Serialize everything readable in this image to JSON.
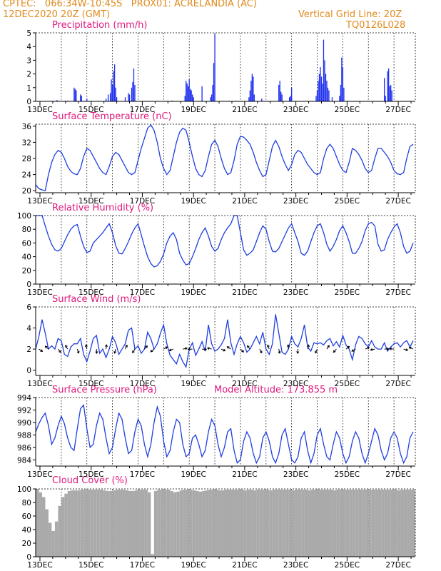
{
  "header": {
    "line1_left": "CPTEC:   066:34W-10:45S   PROX01: ACRELANDIA (AC)",
    "line2_left": "12DEC2020 20Z (GMT)",
    "line2_right": "Vertical Grid Line: 20Z",
    "line3_right": "TQ0126L028"
  },
  "x_ticks": [
    "13DEC",
    "15DEC",
    "17DEC",
    "19DEC",
    "21DEC",
    "23DEC",
    "25DEC",
    "27DEC"
  ],
  "colors": {
    "header": "#e08a1e",
    "title": "#e0197d",
    "line": "#1f3fe0",
    "bar": "#2233ee",
    "cloud": "#aaaaaa"
  },
  "chart_data": [
    {
      "type": "bar",
      "title": "Precipitation (mm/h)",
      "ylim": [
        0,
        5
      ],
      "yticks": [
        0,
        1,
        2,
        3,
        4,
        5
      ],
      "x_range_hours": [
        0,
        356
      ],
      "hour_zero": "12DEC2020 20Z",
      "bars": [
        [
          20,
          0.1
        ],
        [
          30,
          0.05
        ],
        [
          36,
          1.0
        ],
        [
          37,
          0.9
        ],
        [
          38,
          0.8
        ],
        [
          42,
          0.5
        ],
        [
          43,
          0.4
        ],
        [
          48,
          0.2
        ],
        [
          66,
          0.2
        ],
        [
          68,
          0.5
        ],
        [
          70,
          0.6
        ],
        [
          71,
          1.6
        ],
        [
          72,
          1.2
        ],
        [
          73,
          2.2
        ],
        [
          74,
          2.7
        ],
        [
          75,
          1.0
        ],
        [
          76,
          0.3
        ],
        [
          84,
          0.3
        ],
        [
          87,
          0.6
        ],
        [
          88,
          0.5
        ],
        [
          90,
          1.0
        ],
        [
          91,
          1.4
        ],
        [
          92,
          2.4
        ],
        [
          93,
          1.2
        ],
        [
          128,
          0.05
        ],
        [
          140,
          0.4
        ],
        [
          141,
          1.5
        ],
        [
          142,
          1.3
        ],
        [
          143,
          1.1
        ],
        [
          144,
          1.6
        ],
        [
          145,
          0.9
        ],
        [
          146,
          0.8
        ],
        [
          147,
          0.5
        ],
        [
          148,
          0.3
        ],
        [
          156,
          1.1
        ],
        [
          164,
          0.3
        ],
        [
          165,
          0.5
        ],
        [
          166,
          1.2
        ],
        [
          167,
          2.8
        ],
        [
          168,
          4.9
        ],
        [
          200,
          0.3
        ],
        [
          201,
          0.8
        ],
        [
          202,
          1.5
        ],
        [
          203,
          2.0
        ],
        [
          204,
          1.8
        ],
        [
          205,
          0.5
        ],
        [
          212,
          0.2
        ],
        [
          228,
          1.2
        ],
        [
          229,
          1.5
        ],
        [
          230,
          0.7
        ],
        [
          231,
          0.5
        ],
        [
          238,
          0.3
        ],
        [
          239,
          0.4
        ],
        [
          240,
          1.0
        ],
        [
          263,
          0.4
        ],
        [
          264,
          0.8
        ],
        [
          265,
          1.5
        ],
        [
          266,
          2.0
        ],
        [
          267,
          2.5
        ],
        [
          268,
          1.8
        ],
        [
          269,
          1.3
        ],
        [
          270,
          4.5
        ],
        [
          271,
          3.0
        ],
        [
          272,
          2.0
        ],
        [
          273,
          1.5
        ],
        [
          274,
          1.0
        ],
        [
          275,
          0.8
        ],
        [
          278,
          0.3
        ],
        [
          285,
          0.4
        ],
        [
          286,
          1.2
        ],
        [
          287,
          3.2
        ],
        [
          288,
          2.5
        ],
        [
          289,
          1.0
        ],
        [
          327,
          1.7
        ],
        [
          328,
          0.4
        ],
        [
          330,
          2.2
        ],
        [
          331,
          2.4
        ],
        [
          332,
          1.1
        ],
        [
          333,
          1.2
        ],
        [
          334,
          0.8
        ]
      ]
    },
    {
      "type": "line",
      "title": "Surface Temperature (nC)",
      "ylim": [
        19.5,
        36.5
      ],
      "yticks": [
        20,
        24,
        28,
        32,
        36
      ],
      "x_range_hours": [
        0,
        356
      ],
      "x_step_hours": 3,
      "values": [
        21.5,
        20.5,
        20.2,
        20.0,
        24.0,
        27.0,
        29.0,
        30.0,
        29.5,
        28.0,
        26.0,
        24.8,
        24.2,
        24.0,
        25.5,
        28.5,
        30.5,
        30.0,
        28.5,
        27.0,
        25.5,
        24.5,
        24.0,
        26.0,
        28.5,
        29.5,
        29.0,
        27.5,
        26.0,
        24.5,
        24.0,
        24.5,
        27.5,
        30.5,
        33.0,
        35.5,
        36.3,
        35.0,
        32.0,
        28.0,
        25.5,
        24.0,
        25.0,
        28.5,
        32.0,
        34.5,
        35.5,
        35.0,
        32.0,
        28.5,
        25.5,
        24.0,
        23.5,
        25.0,
        28.5,
        31.5,
        32.5,
        31.0,
        28.0,
        25.5,
        24.0,
        24.5,
        27.5,
        31.5,
        33.5,
        33.3,
        32.5,
        31.5,
        29.5,
        27.0,
        25.0,
        23.5,
        24.0,
        27.5,
        31.0,
        32.5,
        31.0,
        28.5,
        26.5,
        25.0,
        26.5,
        29.0,
        30.0,
        29.5,
        28.0,
        26.5,
        25.5,
        24.5,
        24.0,
        24.5,
        28.0,
        30.5,
        31.5,
        30.5,
        28.5,
        26.5,
        25.0,
        24.5,
        27.0,
        30.5,
        30.0,
        29.0,
        27.5,
        25.5,
        24.5,
        25.0,
        28.0,
        30.5,
        30.5,
        29.5,
        28.5,
        27.0,
        25.0,
        24.2,
        24.0,
        24.5,
        28.0,
        31.0,
        31.5,
        30.0,
        28.0,
        26.0,
        24.5,
        24.0,
        27.0,
        30.0,
        30.5,
        29.0,
        27.5,
        26.0,
        24.5,
        25.0,
        27.5,
        28.5,
        28.0
      ],
      "xlabel": "",
      "ylabel": ""
    },
    {
      "type": "line",
      "title": "Relative Humidity (%)",
      "ylim": [
        0,
        100
      ],
      "yticks": [
        0,
        20,
        40,
        60,
        80,
        100
      ],
      "x_range_hours": [
        0,
        356
      ],
      "x_step_hours": 3,
      "values": [
        100,
        100,
        100,
        85,
        70,
        58,
        50,
        48,
        52,
        62,
        72,
        80,
        85,
        87,
        70,
        55,
        46,
        48,
        60,
        65,
        70,
        75,
        82,
        88,
        75,
        56,
        45,
        44,
        52,
        62,
        73,
        82,
        88,
        72,
        55,
        40,
        30,
        25,
        27,
        33,
        44,
        60,
        70,
        75,
        65,
        45,
        35,
        28,
        30,
        40,
        52,
        65,
        75,
        82,
        70,
        55,
        48,
        52,
        65,
        75,
        82,
        88,
        100,
        100,
        75,
        50,
        42,
        45,
        50,
        62,
        75,
        85,
        80,
        62,
        48,
        47,
        52,
        62,
        72,
        82,
        88,
        75,
        62,
        45,
        42,
        48,
        62,
        75,
        85,
        88,
        75,
        58,
        48,
        55,
        65,
        78,
        85,
        75,
        62,
        45,
        45,
        52,
        62,
        78,
        88,
        90,
        85,
        58,
        48,
        50,
        65,
        75,
        83,
        88,
        75,
        55,
        45,
        48,
        60,
        75,
        85,
        86,
        80,
        68,
        55,
        52,
        62,
        78,
        85,
        80,
        65,
        75,
        78
      ],
      "xlabel": "",
      "ylabel": ""
    },
    {
      "type": "line",
      "title": "Surface Wind (m/s)",
      "ylim": [
        -0.5,
        6
      ],
      "yticks": [
        0,
        2,
        4,
        6
      ],
      "x_range_hours": [
        0,
        356
      ],
      "x_step_hours": 3,
      "values": [
        2.0,
        3.2,
        4.8,
        3.5,
        2.0,
        2.3,
        2.0,
        3.0,
        2.8,
        1.5,
        1.3,
        2.2,
        2.5,
        2.5,
        3.0,
        1.5,
        0.8,
        1.8,
        3.0,
        3.3,
        1.6,
        2.0,
        1.2,
        2.0,
        3.2,
        2.6,
        1.5,
        2.0,
        2.5,
        3.8,
        4.0,
        2.0,
        2.3,
        1.6,
        2.0,
        3.6,
        3.0,
        2.0,
        2.5,
        3.5,
        4.3,
        2.5,
        1.4,
        1.0,
        0.6,
        1.5,
        0.8,
        0.3,
        2.0,
        2.6,
        1.4,
        2.0,
        2.7,
        1.8,
        4.3,
        2.5,
        1.8,
        2.0,
        2.4,
        3.0,
        4.8,
        2.6,
        1.5,
        2.5,
        3.2,
        2.6,
        1.7,
        2.0,
        2.6,
        3.2,
        2.5,
        3.6,
        2.0,
        1.5,
        2.5,
        5.3,
        3.5,
        1.7,
        1.5,
        2.0,
        3.2,
        2.5,
        2.2,
        3.0,
        4.3,
        2.2,
        1.8,
        2.6,
        2.5,
        2.6,
        2.4,
        2.8,
        3.0,
        2.3,
        2.7,
        2.2,
        3.3,
        2.4,
        2.0,
        1.0,
        2.4,
        3.2,
        3.0,
        2.5,
        2.2,
        2.8,
        2.2,
        2.0,
        2.0,
        2.6,
        1.8,
        2.2,
        2.5,
        2.6,
        2.2,
        2.6,
        2.8,
        2.2,
        2.8,
        2.4,
        3.5,
        1.8,
        2.8,
        3.5,
        2.8,
        2.0,
        1.3,
        1.5,
        2.6,
        3.0,
        3.2,
        2.5,
        1.5
      ],
      "xlabel": "",
      "ylabel": ""
    },
    {
      "type": "line",
      "title": "Surface Pressure (hPa)",
      "annotation": "Model Altitude: 173.855 m",
      "ylim": [
        983,
        994
      ],
      "yticks": [
        984,
        986,
        988,
        990,
        992,
        994
      ],
      "x_range_hours": [
        0,
        356
      ],
      "x_step_hours": 3,
      "values": [
        988.5,
        989.8,
        990.8,
        991.5,
        989.5,
        986.5,
        987.5,
        989.5,
        991.0,
        989.8,
        987.5,
        986.0,
        985.5,
        989.0,
        992.2,
        992.8,
        989.0,
        986.0,
        986.5,
        989.5,
        991.5,
        990.5,
        987.5,
        985.0,
        986.0,
        989.0,
        991.5,
        990.5,
        987.5,
        985.0,
        985.5,
        988.5,
        990.5,
        989.5,
        986.5,
        984.5,
        986.5,
        990.0,
        992.5,
        991.0,
        987.0,
        984.5,
        985.5,
        988.5,
        990.5,
        990.0,
        986.5,
        984.5,
        985.0,
        987.5,
        988.0,
        986.5,
        984.5,
        985.5,
        988.5,
        990.5,
        989.5,
        986.5,
        984.5,
        986.0,
        988.5,
        989.0,
        985.5,
        983.5,
        984.0,
        987.0,
        988.5,
        987.5,
        985.0,
        983.5,
        984.5,
        987.5,
        988.5,
        987.0,
        984.5,
        983.5,
        985.0,
        988.0,
        989.0,
        986.5,
        984.0,
        983.5,
        984.5,
        987.5,
        988.5,
        985.5,
        983.5,
        985.0,
        988.0,
        989.0,
        986.5,
        984.5,
        984.0,
        986.5,
        988.5,
        987.5,
        985.0,
        983.5,
        984.5,
        987.0,
        988.5,
        987.5,
        985.0,
        983.5,
        985.0,
        987.0,
        989.0,
        988.0,
        985.5,
        984.0,
        985.0,
        987.5,
        988.5,
        987.5,
        985.0,
        983.5,
        984.5,
        987.5,
        988.5,
        986.5,
        983.5,
        983.3,
        984.5,
        988.0,
        990.0,
        987.5,
        983.5,
        983.3,
        985.0,
        988.0,
        990.0,
        988.0,
        985.0,
        984.0,
        985.5
      ],
      "xlabel": "",
      "ylabel": ""
    },
    {
      "type": "area",
      "title": "Cloud Cover (%)",
      "ylim": [
        0,
        100
      ],
      "yticks": [
        0,
        20,
        40,
        60,
        80,
        100
      ],
      "x_range_hours": [
        0,
        356
      ],
      "x_step_hours": 3,
      "values": [
        100,
        95,
        88,
        70,
        50,
        38,
        52,
        75,
        88,
        93,
        97,
        98,
        98,
        98,
        99,
        99,
        99,
        99,
        99,
        99,
        99,
        98,
        97,
        97,
        98,
        99,
        99,
        99,
        98,
        97,
        97,
        98,
        99,
        99,
        99,
        95,
        4,
        97,
        99,
        99,
        99,
        99,
        97,
        95,
        96,
        98,
        99,
        99,
        99,
        98,
        97,
        96,
        97,
        98,
        99,
        99,
        99,
        98,
        98,
        99,
        99,
        99,
        99,
        99,
        99,
        98,
        99,
        99,
        98,
        99,
        99,
        99,
        99,
        98,
        99,
        99,
        99,
        99,
        99,
        99,
        98,
        99,
        99,
        99,
        99,
        98,
        99,
        99,
        99,
        99,
        99,
        99,
        99,
        98,
        99,
        99,
        99,
        99,
        99,
        99,
        99,
        99,
        99,
        99,
        99,
        99,
        99,
        99,
        99,
        99,
        99,
        99,
        99,
        98,
        99,
        99,
        99,
        99,
        99,
        99,
        99,
        99,
        99,
        99,
        99,
        99,
        99,
        99,
        99,
        99,
        99,
        99,
        99
      ],
      "xlabel": "",
      "ylabel": ""
    }
  ]
}
